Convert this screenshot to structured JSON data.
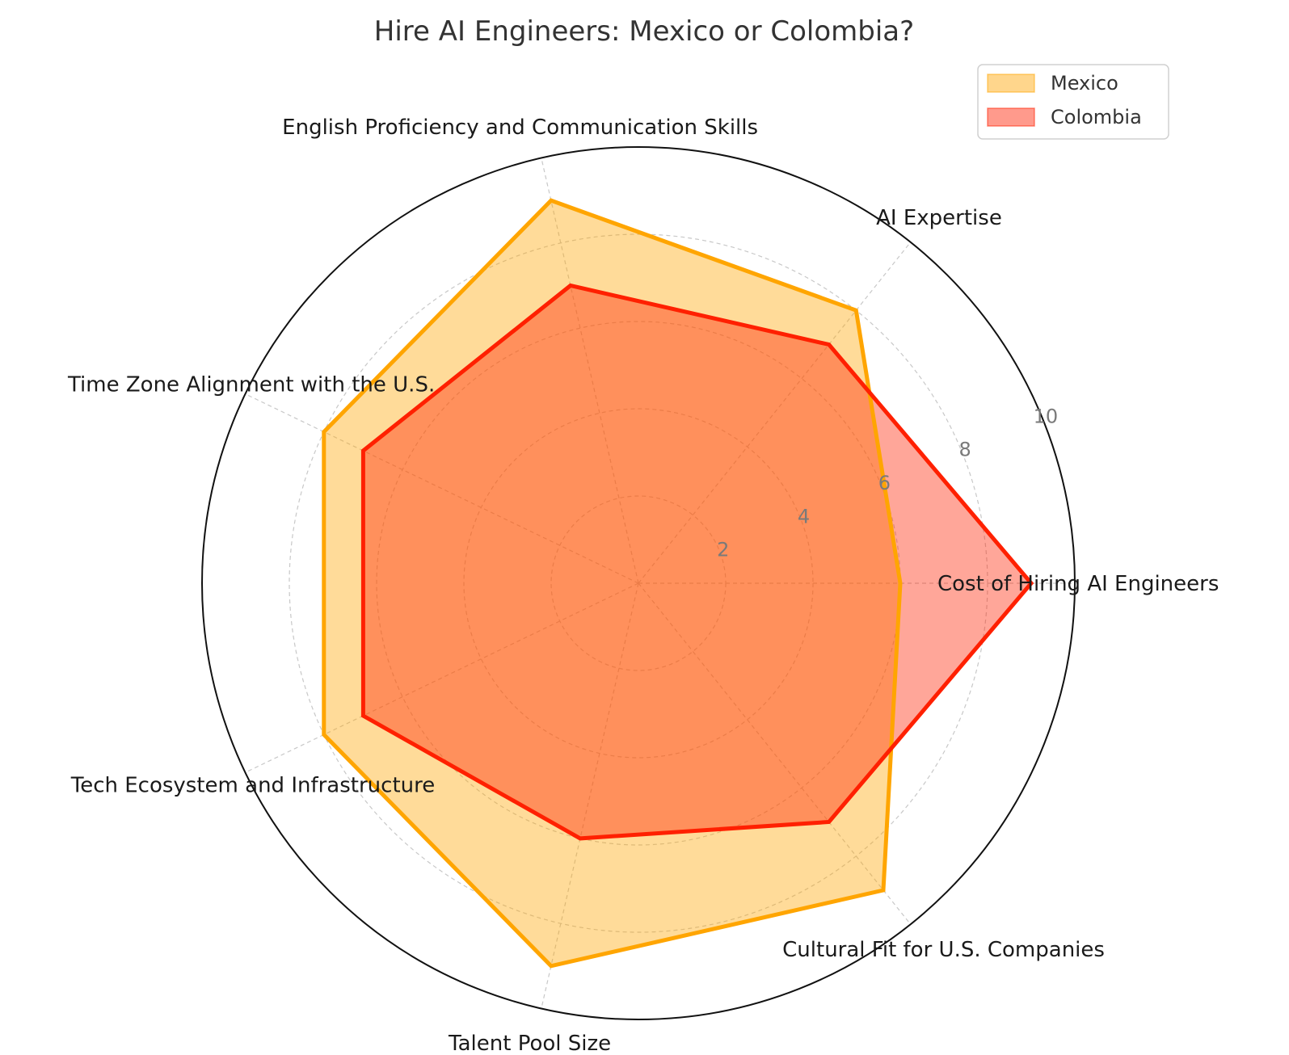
{
  "chart_data": {
    "type": "radar",
    "title": "Hire AI Engineers: Mexico or Colombia?",
    "categories": [
      "Cost of Hiring AI Engineers",
      "AI Expertise",
      "English Proficiency and Communication Skills",
      "Time Zone Alignment with the U.S.",
      "Tech Ecosystem and Infrastructure",
      "Talent Pool Size",
      "Cultural Fit for U.S. Companies"
    ],
    "rlim": [
      0,
      10
    ],
    "rticks": [
      "2",
      "4",
      "6",
      "8",
      "10"
    ],
    "grid": true,
    "legend_position": "top-right",
    "series": [
      {
        "name": "Mexico",
        "values": [
          6.0,
          8.0,
          9.0,
          8.0,
          8.0,
          9.0,
          9.0
        ],
        "line_color": "#FFA500",
        "fill_color": "#FFA500",
        "fill_opacity": 0.4
      },
      {
        "name": "Colombia",
        "values": [
          9.0,
          7.0,
          7.0,
          7.0,
          7.0,
          6.0,
          7.0
        ],
        "line_color": "#FF2000",
        "fill_color": "#FF2000",
        "fill_opacity": 0.4
      }
    ]
  }
}
